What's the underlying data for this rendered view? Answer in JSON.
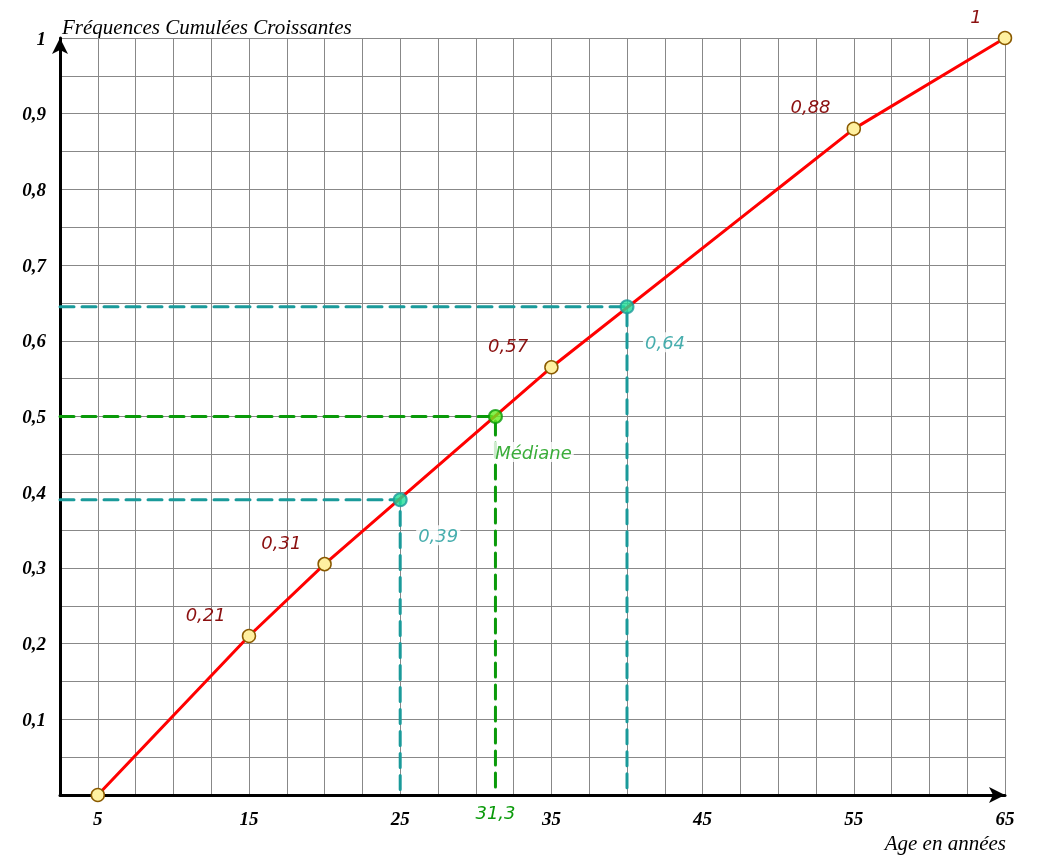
{
  "chart_data": {
    "type": "line",
    "xlabel": "Age en années",
    "ylabel": "Fréquences Cumulées Croissantes",
    "xlim": [
      2.5,
      65
    ],
    "ylim": [
      0,
      1
    ],
    "xticks": [
      {
        "value": 2.5,
        "label": null
      },
      5,
      {
        "value": 7.5,
        "label": null
      },
      {
        "value": 10,
        "label": null
      },
      {
        "value": 12.5,
        "label": null
      },
      15,
      {
        "value": 17.5,
        "label": null
      },
      {
        "value": 20,
        "label": null
      },
      {
        "value": 22.5,
        "label": null
      },
      25,
      {
        "value": 27.5,
        "label": null
      },
      {
        "value": 30,
        "label": null
      },
      {
        "value": 32.5,
        "label": null
      },
      35,
      {
        "value": 37.5,
        "label": null
      },
      {
        "value": 40,
        "label": null
      },
      {
        "value": 42.5,
        "label": null
      },
      45,
      {
        "value": 47.5,
        "label": null
      },
      {
        "value": 50,
        "label": null
      },
      {
        "value": 52.5,
        "label": null
      },
      55,
      {
        "value": 57.5,
        "label": null
      },
      {
        "value": 60,
        "label": null
      },
      {
        "value": 62.5,
        "label": null
      },
      65
    ],
    "yticks": [
      {
        "value": 0,
        "label": null
      },
      {
        "value": 0.05,
        "label": null
      },
      {
        "value": 0.1,
        "label": "0,1"
      },
      {
        "value": 0.15,
        "label": null
      },
      {
        "value": 0.2,
        "label": "0,2"
      },
      {
        "value": 0.25,
        "label": null
      },
      {
        "value": 0.3,
        "label": "0,3"
      },
      {
        "value": 0.35,
        "label": null
      },
      {
        "value": 0.4,
        "label": "0,4"
      },
      {
        "value": 0.45,
        "label": null
      },
      {
        "value": 0.5,
        "label": "0,5"
      },
      {
        "value": 0.55,
        "label": null
      },
      {
        "value": 0.6,
        "label": "0,6"
      },
      {
        "value": 0.65,
        "label": null
      },
      {
        "value": 0.7,
        "label": "0,7"
      },
      {
        "value": 0.75,
        "label": null
      },
      {
        "value": 0.8,
        "label": "0,8"
      },
      {
        "value": 0.85,
        "label": null
      },
      {
        "value": 0.9,
        "label": "0,9"
      },
      {
        "value": 0.95,
        "label": null
      },
      {
        "value": 1,
        "label": "1"
      }
    ],
    "grid": true,
    "marker": "circle",
    "line_style": "solid",
    "series": [
      {
        "color": "#ff0000",
        "x": [
          5,
          15,
          20,
          35,
          55,
          65
        ],
        "values": [
          0,
          0.21,
          0.305,
          0.565,
          0.88,
          1
        ],
        "value_labels": [
          null,
          "0,21",
          "0,31",
          "0,57",
          "0,88",
          "1"
        ]
      },
      {
        "type": "line",
        "color": "#1a9a9a",
        "x": [
          2.5,
          25,
          25
        ],
        "values": [
          0.39,
          0.39,
          0
        ],
        "line_style": "dashed",
        "marker": "none"
      },
      {
        "type": "line",
        "color": "#1a9a9a",
        "x": [
          2.5,
          40,
          40
        ],
        "values": [
          0.645,
          0.645,
          0
        ],
        "line_style": "dashed",
        "marker": "none"
      },
      {
        "type": "line",
        "color": "#0a9a0a",
        "x": [
          2.5,
          31.3,
          31.3
        ],
        "values": [
          0.5,
          0.5,
          0
        ],
        "line_style": "dashed",
        "marker": "none"
      },
      {
        "type": "scatter",
        "color": "#1a9a9a",
        "x": [
          25,
          40
        ],
        "values": [
          0.39,
          0.645
        ],
        "value_labels": [
          "0,39",
          "0,64"
        ],
        "line_style": "dashed"
      },
      {
        "type": "scatter",
        "color": "#0a9a0a",
        "x": [
          31.3
        ],
        "values": [
          0.5
        ],
        "value_labels": [
          "Médiane"
        ],
        "line_style": "dashed"
      }
    ],
    "annotations": [
      "31,3"
    ]
  }
}
